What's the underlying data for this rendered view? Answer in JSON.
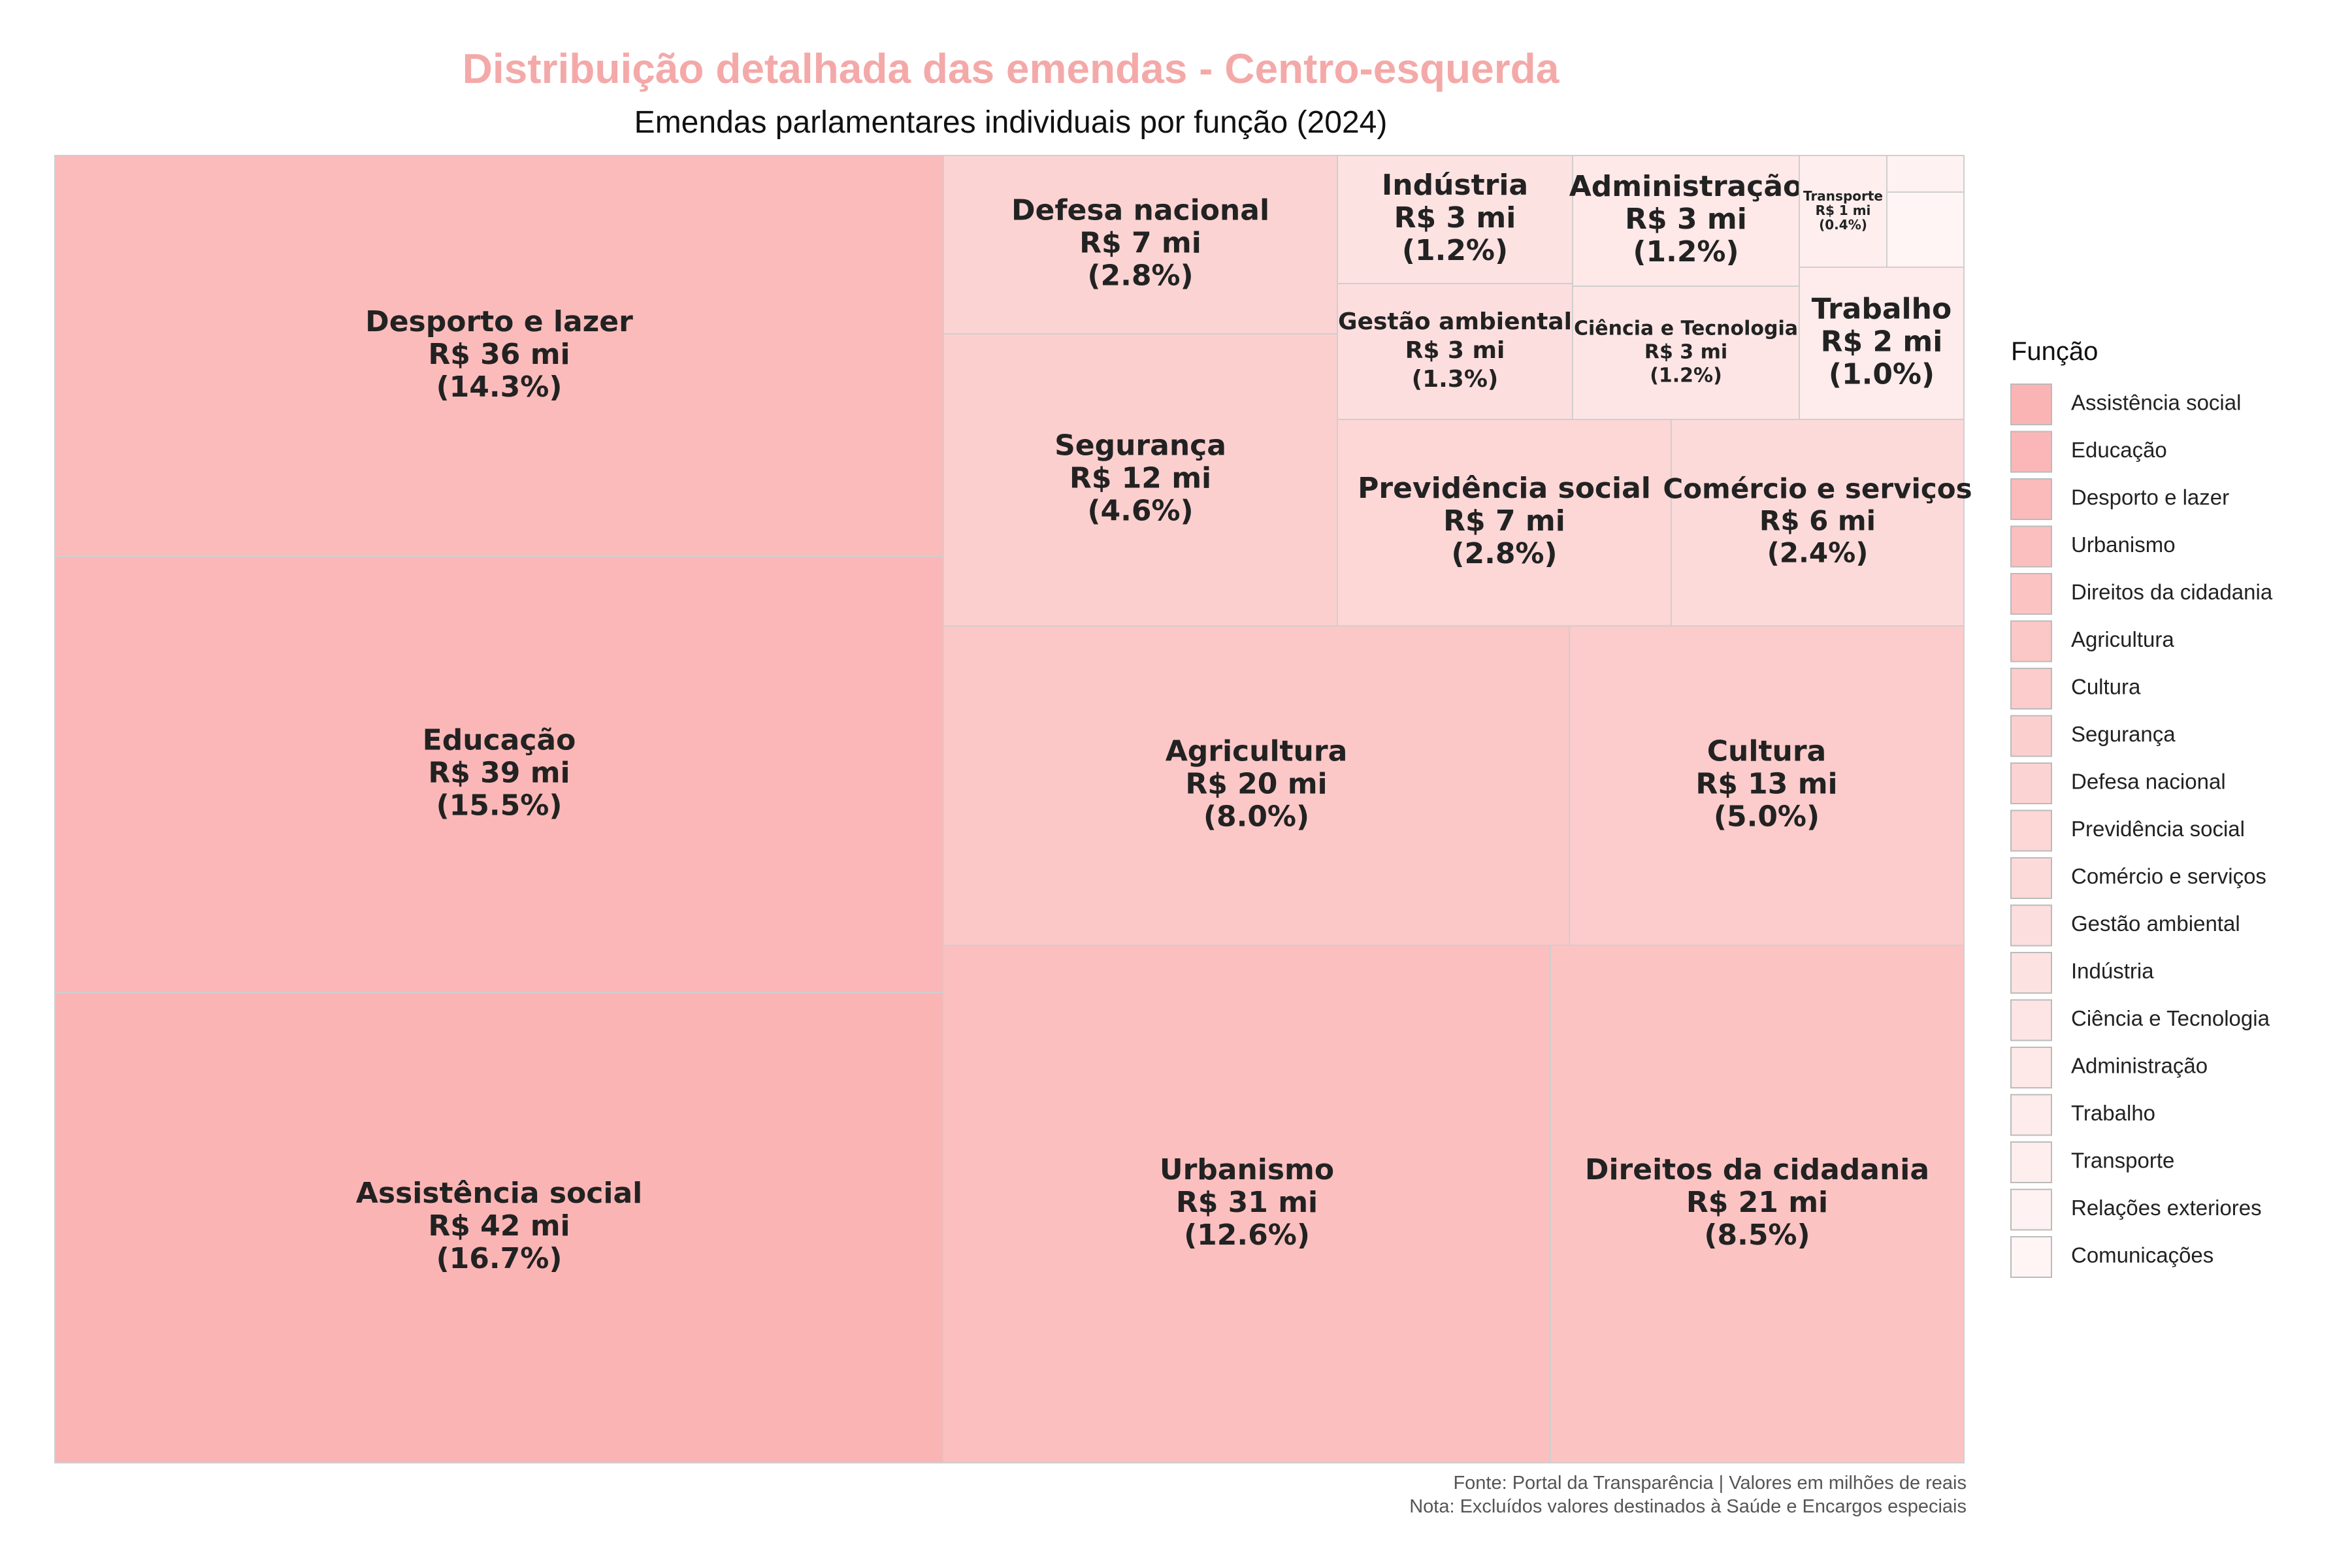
{
  "chart_data": {
    "type": "treemap",
    "title": "Distribuição detalhada das emendas - Centro-esquerda",
    "subtitle": "Emendas parlamentares individuais por função (2024)",
    "legend_title": "Função",
    "legend_position": "right",
    "caption_lines": [
      "Fonte: Portal da Transparência | Valores em milhões de reais",
      "Nota: Excluídos valores destinados à Saúde e Encargos especiais"
    ],
    "items": [
      {
        "name": "Assistência social",
        "value_label": "R$ 42 mi",
        "pct_label": "(16.7%)",
        "value": 42,
        "pct": 16.7,
        "color": "#FBB4B4"
      },
      {
        "name": "Educação",
        "value_label": "R$ 39 mi",
        "pct_label": "(15.5%)",
        "value": 39,
        "pct": 15.5,
        "color": "#FBB7B7"
      },
      {
        "name": "Desporto e lazer",
        "value_label": "R$ 36 mi",
        "pct_label": "(14.3%)",
        "value": 36,
        "pct": 14.3,
        "color": "#FBBBBB"
      },
      {
        "name": "Urbanismo",
        "value_label": "R$ 31 mi",
        "pct_label": "(12.6%)",
        "value": 31,
        "pct": 12.6,
        "color": "#FBBFBF"
      },
      {
        "name": "Direitos da cidadania",
        "value_label": "R$ 21 mi",
        "pct_label": "(8.5%)",
        "value": 21,
        "pct": 8.5,
        "color": "#FCC3C3"
      },
      {
        "name": "Agricultura",
        "value_label": "R$ 20 mi",
        "pct_label": "(8.0%)",
        "value": 20,
        "pct": 8.0,
        "color": "#FCC7C7"
      },
      {
        "name": "Cultura",
        "value_label": "R$ 13 mi",
        "pct_label": "(5.0%)",
        "value": 13,
        "pct": 5.0,
        "color": "#FCCBCB"
      },
      {
        "name": "Segurança",
        "value_label": "R$ 12 mi",
        "pct_label": "(4.6%)",
        "value": 12,
        "pct": 4.6,
        "color": "#FCCFCF"
      },
      {
        "name": "Defesa nacional",
        "value_label": "R$ 7 mi",
        "pct_label": "(2.8%)",
        "value": 7,
        "pct": 2.8,
        "color": "#FCD3D3"
      },
      {
        "name": "Previdência social",
        "value_label": "R$ 7 mi",
        "pct_label": "(2.8%)",
        "value": 7,
        "pct": 2.8,
        "color": "#FDD6D6"
      },
      {
        "name": "Comércio e serviços",
        "value_label": "R$ 6 mi",
        "pct_label": "(2.4%)",
        "value": 6,
        "pct": 2.4,
        "color": "#FDDADA"
      },
      {
        "name": "Gestão ambiental",
        "value_label": "R$ 3 mi",
        "pct_label": "(1.3%)",
        "value": 3,
        "pct": 1.3,
        "color": "#FDDEDE"
      },
      {
        "name": "Indústria",
        "value_label": "R$ 3 mi",
        "pct_label": "(1.2%)",
        "value": 3,
        "pct": 1.2,
        "color": "#FDE2E2"
      },
      {
        "name": "Ciência e Tecnologia",
        "value_label": "R$ 3 mi",
        "pct_label": "(1.2%)",
        "value": 3,
        "pct": 1.2,
        "color": "#FDE5E5"
      },
      {
        "name": "Administração",
        "value_label": "R$ 3 mi",
        "pct_label": "(1.2%)",
        "value": 3,
        "pct": 1.2,
        "color": "#FEE8E8"
      },
      {
        "name": "Trabalho",
        "value_label": "R$ 2 mi",
        "pct_label": "(1.0%)",
        "value": 2,
        "pct": 1.0,
        "color": "#FEEBEB"
      },
      {
        "name": "Transporte",
        "value_label": "R$ 1 mi",
        "pct_label": "(0.4%)",
        "value": 1,
        "pct": 0.4,
        "color": "#FEEEEE"
      },
      {
        "name": "Relações exteriores",
        "value_label": "",
        "pct_label": "",
        "color": "#FEF2F2"
      },
      {
        "name": "Comunicações",
        "value_label": "",
        "pct_label": "",
        "color": "#FFF5F5"
      }
    ]
  }
}
